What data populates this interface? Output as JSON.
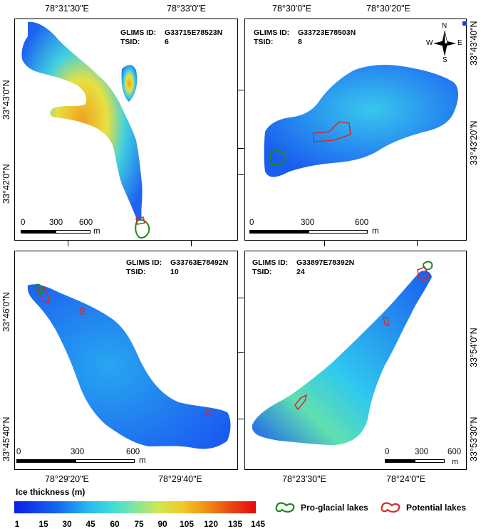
{
  "panels": [
    {
      "glims_label": "GLIMS ID:",
      "glims_id": "G33715E78523N",
      "tsid_label": "TSID:",
      "tsid": "6",
      "scale": {
        "t0": "0",
        "t1": "300",
        "t2": "600",
        "unit": "m"
      }
    },
    {
      "glims_label": "GLIMS ID:",
      "glims_id": "G33723E78503N",
      "tsid_label": "TSID:",
      "tsid": "8",
      "scale": {
        "t0": "0",
        "t1": "300",
        "t2": "600",
        "unit": "m"
      }
    },
    {
      "glims_label": "GLIMS ID:",
      "glims_id": "G33763E78492N",
      "tsid_label": "TSID:",
      "tsid": "10",
      "scale": {
        "t0": "0",
        "t1": "300",
        "t2": "600",
        "unit": "m"
      }
    },
    {
      "glims_label": "GLIMS ID:",
      "glims_id": "G33897E78392N",
      "tsid_label": "TSID:",
      "tsid": "24",
      "scale": {
        "t0": "0",
        "t1": "300",
        "t2": "600",
        "unit": "m"
      }
    }
  ],
  "coords": {
    "p1_top": [
      "78°31'30\"E",
      "78°33'0\"E"
    ],
    "p1_left": [
      "33°43'0\"N",
      "33°42'0\"N"
    ],
    "p2_top": [
      "78°30'0\"E",
      "78°30'20\"E"
    ],
    "p2_right": [
      "33°43'40\"N",
      "33°43'20\"N"
    ],
    "p3_left": [
      "33°46'0\"N",
      "33°45'40\"N"
    ],
    "p3_bottom": [
      "78°29'20\"E",
      "78°29'40\"E"
    ],
    "p4_right": [
      "33°54'0\"N",
      "33°53'30\"N"
    ],
    "p4_bottom": [
      "78°23'30\"E",
      "78°24'0\"E"
    ]
  },
  "compass": {
    "n": "N",
    "s": "S",
    "e": "E",
    "w": "W"
  },
  "legend": {
    "title": "Ice thickness (m)",
    "ticks": [
      "1",
      "15",
      "30",
      "45",
      "60",
      "75",
      "90",
      "105",
      "120",
      "135",
      "145"
    ],
    "proglacial_label": "Pro-glacial lakes",
    "potential_label": "Potential lakes",
    "proglacial_color": "#1a8a1a",
    "potential_color": "#d42a2a"
  }
}
